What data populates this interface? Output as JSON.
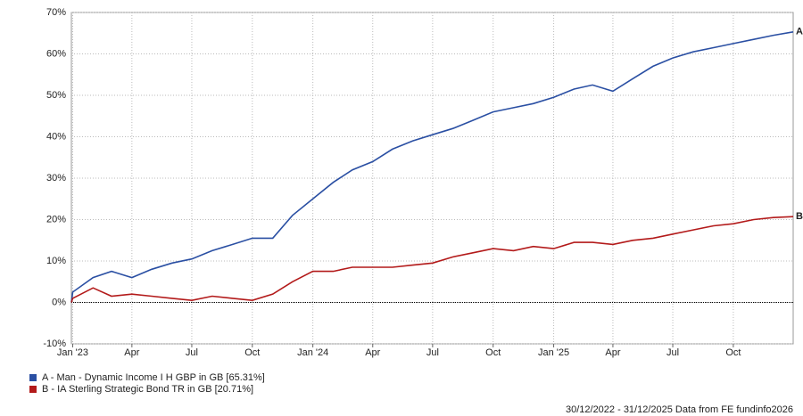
{
  "chart_data": {
    "type": "line",
    "x": [
      "2022-12-30",
      "2023-01",
      "2023-02",
      "2023-03",
      "2023-04",
      "2023-05",
      "2023-06",
      "2023-07",
      "2023-08",
      "2023-09",
      "2023-10",
      "2023-11",
      "2023-12",
      "2024-01",
      "2024-02",
      "2024-03",
      "2024-04",
      "2024-05",
      "2024-06",
      "2024-07",
      "2024-08",
      "2024-09",
      "2024-10",
      "2024-11",
      "2024-12",
      "2025-01",
      "2025-02",
      "2025-03",
      "2025-04",
      "2025-05",
      "2025-06",
      "2025-07",
      "2025-08",
      "2025-09",
      "2025-10",
      "2025-11",
      "2025-12",
      "2025-12-31"
    ],
    "series": [
      {
        "name": "A - Man - Dynamic Income I H GBP in GB [65.31%]",
        "tag": "A",
        "color": "#2a4fa3",
        "values": [
          0,
          2.5,
          6,
          7.5,
          6,
          8,
          9.5,
          10.5,
          12.5,
          14,
          15.5,
          15.5,
          21,
          25,
          29,
          32,
          34,
          37,
          39,
          40.5,
          42,
          44,
          46,
          47,
          48,
          49.5,
          51.5,
          52.5,
          51,
          54,
          57,
          59,
          60.5,
          61.5,
          62.5,
          63.5,
          64.5,
          65.31
        ]
      },
      {
        "name": "B - IA Sterling Strategic Bond TR in GB [20.71%]",
        "tag": "B",
        "color": "#b31a1a",
        "values": [
          0,
          1,
          3.5,
          1.5,
          2,
          1.5,
          1,
          0.5,
          1.5,
          1,
          0.5,
          2,
          5,
          7.5,
          7.5,
          8.5,
          8.5,
          8.5,
          9,
          9.5,
          11,
          12,
          13,
          12.5,
          13.5,
          13,
          14.5,
          14.5,
          14,
          15,
          15.5,
          16.5,
          17.5,
          18.5,
          19,
          20,
          20.5,
          20.71
        ]
      }
    ],
    "xlim": [
      "2022-12-30",
      "2025-12-31"
    ],
    "xticks": [
      {
        "value": "2023-01-01",
        "label": "Jan '23"
      },
      {
        "value": "2023-04-01",
        "label": "Apr"
      },
      {
        "value": "2023-07-01",
        "label": "Jul"
      },
      {
        "value": "2023-10-01",
        "label": "Oct"
      },
      {
        "value": "2024-01-01",
        "label": "Jan '24"
      },
      {
        "value": "2024-04-01",
        "label": "Apr"
      },
      {
        "value": "2024-07-01",
        "label": "Jul"
      },
      {
        "value": "2024-10-01",
        "label": "Oct"
      },
      {
        "value": "2025-01-01",
        "label": "Jan '25"
      },
      {
        "value": "2025-04-01",
        "label": "Apr"
      },
      {
        "value": "2025-07-01",
        "label": "Jul"
      },
      {
        "value": "2025-10-01",
        "label": "Oct"
      }
    ],
    "ylim": [
      -10,
      70
    ],
    "yticks": [
      {
        "value": -10,
        "label": "-10%"
      },
      {
        "value": 0,
        "label": "0%"
      },
      {
        "value": 10,
        "label": "10%"
      },
      {
        "value": 20,
        "label": "20%"
      },
      {
        "value": 30,
        "label": "30%"
      },
      {
        "value": 40,
        "label": "40%"
      },
      {
        "value": 50,
        "label": "50%"
      },
      {
        "value": 60,
        "label": "60%"
      },
      {
        "value": 70,
        "label": "70%"
      }
    ],
    "grid": true,
    "zero_line": true,
    "footer": "30/12/2022 - 31/12/2025 Data from FE fundinfo2026"
  }
}
